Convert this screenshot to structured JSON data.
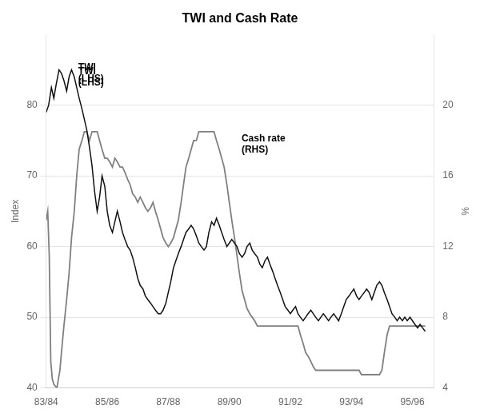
{
  "chart_data": {
    "type": "line",
    "title": "TWI and Cash Rate",
    "y_label": "Index",
    "y2_label": "%",
    "xlim": [
      1983.5,
      1996.2
    ],
    "xticks": [
      {
        "value": 1983.5,
        "label": "83/84"
      },
      {
        "value": 1985.5,
        "label": "85/86"
      },
      {
        "value": 1987.5,
        "label": "87/88"
      },
      {
        "value": 1989.5,
        "label": "89/90"
      },
      {
        "value": 1991.5,
        "label": "91/92"
      },
      {
        "value": 1993.5,
        "label": "93/94"
      },
      {
        "value": 1995.5,
        "label": "95/96"
      }
    ],
    "ylim": [
      40,
      90
    ],
    "yticks": [
      40,
      50,
      60,
      70,
      80
    ],
    "y2lim": [
      4,
      24
    ],
    "y2ticks": [
      4,
      8,
      12,
      16,
      20
    ],
    "grid": true,
    "annotations": [
      {
        "text": "TWI\n(LHS)",
        "x": 1984.55,
        "y": 82.5
      },
      {
        "text": "TWI\n(LHS)",
        "x": 1984.55,
        "y": 83
      },
      {
        "text": "Cash rate\n(RHS)",
        "x": 1989.9,
        "y": 73
      }
    ],
    "series": [
      {
        "color": "#111111",
        "x": [
          1983.5,
          1983.58,
          1983.67,
          1983.75,
          1983.83,
          1983.92,
          1984.0,
          1984.08,
          1984.17,
          1984.25,
          1984.33,
          1984.42,
          1984.5,
          1984.58,
          1984.67,
          1984.75,
          1984.83,
          1984.92,
          1985.0,
          1985.08,
          1985.17,
          1985.25,
          1985.33,
          1985.42,
          1985.5,
          1985.58,
          1985.67,
          1985.75,
          1985.83,
          1985.92,
          1986.0,
          1986.08,
          1986.17,
          1986.25,
          1986.33,
          1986.42,
          1986.5,
          1986.58,
          1986.67,
          1986.75,
          1986.83,
          1986.92,
          1987.0,
          1987.08,
          1987.17,
          1987.25,
          1987.33,
          1987.42,
          1987.5,
          1987.58,
          1987.67,
          1987.75,
          1987.83,
          1987.92,
          1988.0,
          1988.08,
          1988.17,
          1988.25,
          1988.33,
          1988.42,
          1988.5,
          1988.58,
          1988.67,
          1988.75,
          1988.83,
          1988.92,
          1989.0,
          1989.08,
          1989.17,
          1989.25,
          1989.33,
          1989.42,
          1989.5,
          1989.58,
          1989.67,
          1989.75,
          1989.83,
          1989.92,
          1990.0,
          1990.08,
          1990.17,
          1990.25,
          1990.33,
          1990.42,
          1990.5,
          1990.58,
          1990.67,
          1990.75,
          1990.83,
          1990.92,
          1991.0,
          1991.08,
          1991.17,
          1991.25,
          1991.33,
          1991.42,
          1991.5,
          1991.58,
          1991.67,
          1991.75,
          1991.83,
          1991.92,
          1992.0,
          1992.08,
          1992.17,
          1992.25,
          1992.33,
          1992.42,
          1992.5,
          1992.58,
          1992.67,
          1992.75,
          1992.83,
          1992.92,
          1993.0,
          1993.08,
          1993.17,
          1993.25,
          1993.33,
          1993.42,
          1993.5,
          1993.58,
          1993.67,
          1993.75,
          1993.83,
          1993.92,
          1994.0,
          1994.08,
          1994.17,
          1994.25,
          1994.33,
          1994.42,
          1994.5,
          1994.58,
          1994.67,
          1994.75,
          1994.83,
          1994.92,
          1995.0,
          1995.08,
          1995.17,
          1995.25,
          1995.33,
          1995.42,
          1995.5,
          1995.58,
          1995.67,
          1995.75,
          1995.83,
          1995.92
        ],
        "values": [
          79.0,
          80.0,
          82.5,
          81.0,
          83.0,
          85.0,
          84.5,
          83.5,
          82.0,
          84.0,
          85.0,
          84.0,
          82.5,
          81.0,
          79.5,
          78.0,
          76.5,
          74.0,
          71.5,
          68.0,
          65.0,
          67.0,
          70.0,
          68.5,
          65.0,
          63.0,
          62.0,
          63.5,
          65.0,
          63.5,
          62.0,
          61.0,
          60.0,
          59.5,
          58.5,
          57.0,
          55.5,
          54.5,
          54.0,
          53.0,
          52.5,
          52.0,
          51.5,
          51.0,
          50.5,
          50.5,
          51.0,
          52.0,
          53.5,
          55.0,
          57.0,
          58.0,
          59.0,
          60.0,
          61.0,
          62.0,
          62.5,
          63.0,
          62.5,
          61.5,
          60.5,
          60.0,
          59.5,
          60.0,
          62.0,
          63.5,
          63.0,
          64.0,
          63.0,
          62.0,
          61.0,
          60.0,
          60.5,
          61.0,
          60.5,
          60.0,
          59.0,
          58.5,
          59.0,
          60.0,
          60.5,
          59.5,
          59.0,
          58.5,
          57.5,
          57.0,
          58.0,
          58.5,
          57.5,
          56.5,
          55.5,
          54.5,
          53.5,
          52.5,
          51.5,
          51.0,
          50.5,
          51.0,
          51.5,
          50.5,
          50.0,
          49.5,
          50.0,
          50.5,
          51.0,
          50.5,
          50.0,
          49.5,
          50.0,
          50.5,
          50.0,
          49.5,
          50.0,
          50.5,
          50.0,
          49.5,
          50.5,
          51.5,
          52.5,
          53.0,
          53.5,
          54.0,
          53.0,
          52.5,
          53.0,
          53.5,
          54.0,
          53.5,
          52.5,
          53.5,
          54.5,
          55.0,
          54.5,
          53.5,
          52.5,
          51.5,
          50.5,
          50.0,
          49.5,
          50.0,
          49.5,
          50.0,
          49.5,
          50.0,
          49.5,
          49.0,
          48.5,
          49.0,
          48.5,
          48.0
        ]
      },
      {
        "color": "#808080",
        "axis": "y2",
        "x": [
          1983.5,
          1983.55,
          1983.6,
          1983.65,
          1983.7,
          1983.75,
          1983.8,
          1983.85,
          1983.9,
          1983.95,
          1984.0,
          1984.08,
          1984.17,
          1984.25,
          1984.33,
          1984.42,
          1984.5,
          1984.58,
          1984.67,
          1984.75,
          1984.83,
          1984.92,
          1985.0,
          1985.08,
          1985.17,
          1985.25,
          1985.33,
          1985.42,
          1985.5,
          1985.58,
          1985.67,
          1985.75,
          1985.83,
          1985.92,
          1986.0,
          1986.08,
          1986.17,
          1986.25,
          1986.33,
          1986.42,
          1986.5,
          1986.58,
          1986.67,
          1986.75,
          1986.83,
          1986.92,
          1987.0,
          1987.08,
          1987.17,
          1987.25,
          1987.33,
          1987.42,
          1987.5,
          1987.58,
          1987.67,
          1987.75,
          1987.83,
          1987.92,
          1988.0,
          1988.08,
          1988.17,
          1988.25,
          1988.33,
          1988.42,
          1988.5,
          1988.58,
          1988.67,
          1988.75,
          1988.83,
          1988.92,
          1989.0,
          1989.08,
          1989.17,
          1989.25,
          1989.33,
          1989.42,
          1989.5,
          1989.58,
          1989.67,
          1989.75,
          1989.83,
          1989.92,
          1990.0,
          1990.08,
          1990.17,
          1990.25,
          1990.33,
          1990.42,
          1990.5,
          1990.58,
          1990.67,
          1990.75,
          1990.83,
          1990.92,
          1991.0,
          1991.08,
          1991.17,
          1991.25,
          1991.33,
          1991.42,
          1991.5,
          1991.58,
          1991.67,
          1991.75,
          1991.83,
          1991.92,
          1992.0,
          1992.08,
          1992.17,
          1992.25,
          1992.33,
          1992.42,
          1992.5,
          1992.58,
          1992.67,
          1992.75,
          1992.83,
          1992.92,
          1993.0,
          1993.08,
          1993.17,
          1993.25,
          1993.33,
          1993.42,
          1993.5,
          1993.58,
          1993.67,
          1993.75,
          1993.83,
          1993.92,
          1994.0,
          1994.08,
          1994.17,
          1994.25,
          1994.33,
          1994.42,
          1994.5,
          1994.58,
          1994.67,
          1994.75,
          1994.83,
          1994.92,
          1995.0,
          1995.08,
          1995.17,
          1995.25,
          1995.33,
          1995.42,
          1995.5,
          1995.58,
          1995.67,
          1995.75,
          1995.83,
          1995.92
        ],
        "values": [
          13.5,
          14.0,
          11.5,
          5.5,
          4.5,
          4.2,
          4.1,
          4.0,
          4.5,
          5.0,
          6.0,
          7.5,
          9.0,
          10.5,
          12.5,
          14.0,
          16.0,
          17.5,
          18.0,
          18.5,
          18.5,
          18.0,
          18.5,
          18.5,
          18.5,
          18.0,
          17.5,
          17.0,
          17.0,
          16.8,
          16.5,
          17.0,
          16.8,
          16.5,
          16.5,
          16.2,
          15.8,
          15.5,
          15.0,
          14.8,
          14.5,
          14.8,
          14.5,
          14.2,
          14.0,
          14.2,
          14.5,
          14.0,
          13.5,
          13.0,
          12.5,
          12.2,
          12.0,
          12.2,
          12.5,
          13.0,
          13.5,
          14.5,
          15.5,
          16.5,
          17.0,
          17.5,
          18.0,
          18.0,
          18.5,
          18.5,
          18.5,
          18.5,
          18.5,
          18.5,
          18.5,
          18.0,
          17.5,
          17.0,
          16.5,
          15.5,
          14.5,
          13.5,
          12.5,
          11.5,
          10.5,
          9.5,
          9.0,
          8.5,
          8.2,
          8.0,
          7.8,
          7.5,
          7.5,
          7.5,
          7.5,
          7.5,
          7.5,
          7.5,
          7.5,
          7.5,
          7.5,
          7.5,
          7.5,
          7.5,
          7.5,
          7.5,
          7.5,
          7.5,
          7.0,
          6.5,
          6.0,
          5.8,
          5.5,
          5.2,
          5.0,
          5.0,
          5.0,
          5.0,
          5.0,
          5.0,
          5.0,
          5.0,
          5.0,
          5.0,
          5.0,
          5.0,
          5.0,
          5.0,
          5.0,
          5.0,
          5.0,
          5.0,
          4.75,
          4.75,
          4.75,
          4.75,
          4.75,
          4.75,
          4.75,
          4.75,
          5.0,
          6.0,
          7.0,
          7.5,
          7.5,
          7.5,
          7.5,
          7.5,
          7.5,
          7.5,
          7.5,
          7.5,
          7.5,
          7.5,
          7.5,
          7.5,
          7.5,
          7.5
        ]
      }
    ]
  }
}
